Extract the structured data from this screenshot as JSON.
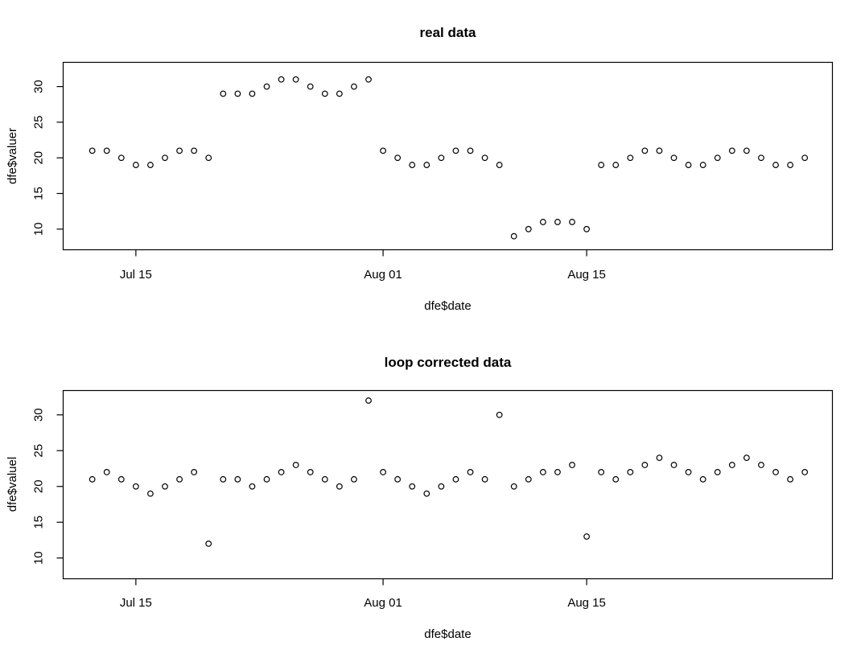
{
  "figure": {
    "background": "#ffffff",
    "foreground": "#000000"
  },
  "chart_data": [
    {
      "type": "scatter",
      "title": "real data",
      "xlabel": "dfe$date",
      "ylabel": "dfe$valuer",
      "point_style": "open-circle",
      "point_color": "#000000",
      "grid": false,
      "legend": null,
      "yticks": [
        10,
        15,
        20,
        25,
        30
      ],
      "ylim": [
        7.1,
        33.4
      ],
      "xlim_index": [
        -2,
        50.9
      ],
      "xticks": [
        {
          "label": "Jul 15",
          "index": 3
        },
        {
          "label": "Aug 01",
          "index": 20
        },
        {
          "label": "Aug 15",
          "index": 34
        }
      ],
      "dates": [
        "Jul 12",
        "Jul 13",
        "Jul 14",
        "Jul 15",
        "Jul 16",
        "Jul 17",
        "Jul 18",
        "Jul 19",
        "Jul 20",
        "Jul 21",
        "Jul 22",
        "Jul 23",
        "Jul 24",
        "Jul 25",
        "Jul 26",
        "Jul 27",
        "Jul 28",
        "Jul 29",
        "Jul 30",
        "Jul 31",
        "Aug 01",
        "Aug 02",
        "Aug 03",
        "Aug 04",
        "Aug 05",
        "Aug 06",
        "Aug 07",
        "Aug 08",
        "Aug 09",
        "Aug 10",
        "Aug 11",
        "Aug 12",
        "Aug 13",
        "Aug 14",
        "Aug 15",
        "Aug 16",
        "Aug 17",
        "Aug 18",
        "Aug 19",
        "Aug 20",
        "Aug 21",
        "Aug 22",
        "Aug 23",
        "Aug 24",
        "Aug 25",
        "Aug 26",
        "Aug 27",
        "Aug 28",
        "Aug 29",
        "Aug 30"
      ],
      "values": [
        21,
        21,
        20,
        19,
        19,
        20,
        21,
        21,
        20,
        29,
        29,
        29,
        30,
        31,
        31,
        30,
        29,
        29,
        30,
        31,
        21,
        20,
        19,
        19,
        20,
        21,
        21,
        20,
        19,
        9,
        10,
        11,
        11,
        11,
        10,
        19,
        19,
        20,
        21,
        21,
        20,
        19,
        19,
        20,
        21,
        21,
        20,
        19,
        19,
        20
      ]
    },
    {
      "type": "scatter",
      "title": "loop corrected data",
      "xlabel": "dfe$date",
      "ylabel": "dfe$valuel",
      "point_style": "open-circle",
      "point_color": "#000000",
      "grid": false,
      "legend": null,
      "yticks": [
        10,
        15,
        20,
        25,
        30
      ],
      "ylim": [
        7.1,
        33.4
      ],
      "xlim_index": [
        -2,
        50.9
      ],
      "xticks": [
        {
          "label": "Jul 15",
          "index": 3
        },
        {
          "label": "Aug 01",
          "index": 20
        },
        {
          "label": "Aug 15",
          "index": 34
        }
      ],
      "dates": [
        "Jul 12",
        "Jul 13",
        "Jul 14",
        "Jul 15",
        "Jul 16",
        "Jul 17",
        "Jul 18",
        "Jul 19",
        "Jul 20",
        "Jul 21",
        "Jul 22",
        "Jul 23",
        "Jul 24",
        "Jul 25",
        "Jul 26",
        "Jul 27",
        "Jul 28",
        "Jul 29",
        "Jul 30",
        "Jul 31",
        "Aug 01",
        "Aug 02",
        "Aug 03",
        "Aug 04",
        "Aug 05",
        "Aug 06",
        "Aug 07",
        "Aug 08",
        "Aug 09",
        "Aug 10",
        "Aug 11",
        "Aug 12",
        "Aug 13",
        "Aug 14",
        "Aug 15",
        "Aug 16",
        "Aug 17",
        "Aug 18",
        "Aug 19",
        "Aug 20",
        "Aug 21",
        "Aug 22",
        "Aug 23",
        "Aug 24",
        "Aug 25",
        "Aug 26",
        "Aug 27",
        "Aug 28",
        "Aug 29",
        "Aug 30"
      ],
      "values": [
        21,
        22,
        21,
        20,
        19,
        20,
        21,
        22,
        12,
        21,
        21,
        20,
        21,
        22,
        23,
        22,
        21,
        20,
        21,
        32,
        22,
        21,
        20,
        19,
        20,
        21,
        22,
        21,
        30,
        20,
        21,
        22,
        22,
        23,
        13,
        22,
        21,
        22,
        23,
        24,
        23,
        22,
        21,
        22,
        23,
        24,
        23,
        22,
        21,
        22
      ]
    }
  ]
}
